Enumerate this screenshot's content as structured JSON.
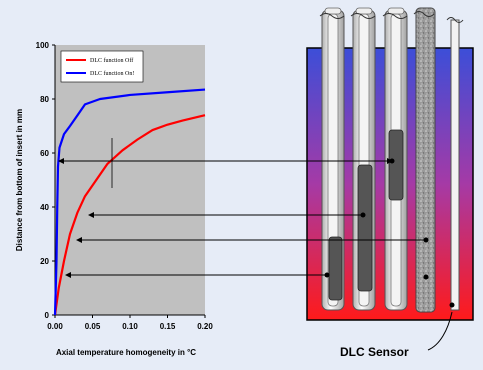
{
  "colors": {
    "background": "#e6ecf7",
    "plot_area": "#c0c0c0",
    "series_off": "#ff0000",
    "series_on": "#0000ff",
    "bath_top": "#3c4ed8",
    "bath_bottom": "#ff1a1a",
    "bath_border": "#000000"
  },
  "chart_data": {
    "type": "line",
    "xlabel": "Axial temperature homogeneity in °C",
    "ylabel": "Distance from bottom of insert in mm",
    "xlim": [
      0,
      0.2
    ],
    "ylim": [
      0,
      100
    ],
    "x_ticks": [
      "0.00",
      "0.05",
      "0.10",
      "0.15",
      "0.20"
    ],
    "y_ticks": [
      "0",
      "20",
      "40",
      "60",
      "80",
      "100"
    ],
    "grid": false,
    "legend_position": "top-left",
    "series": [
      {
        "name": "DLC function Off",
        "color": "#ff0000",
        "points": [
          [
            0.0,
            0
          ],
          [
            0.005,
            10
          ],
          [
            0.012,
            20
          ],
          [
            0.02,
            30
          ],
          [
            0.03,
            38
          ],
          [
            0.04,
            44
          ],
          [
            0.055,
            50
          ],
          [
            0.07,
            56
          ],
          [
            0.09,
            61
          ],
          [
            0.11,
            65
          ],
          [
            0.13,
            68.5
          ],
          [
            0.15,
            70.5
          ],
          [
            0.17,
            72
          ],
          [
            0.2,
            74
          ]
        ]
      },
      {
        "name": "DLC function On!",
        "color": "#0000ff",
        "points": [
          [
            0.0,
            0
          ],
          [
            0.002,
            20
          ],
          [
            0.003,
            40
          ],
          [
            0.004,
            55
          ],
          [
            0.006,
            62
          ],
          [
            0.012,
            67
          ],
          [
            0.02,
            70
          ],
          [
            0.03,
            74
          ],
          [
            0.04,
            78
          ],
          [
            0.06,
            80
          ],
          [
            0.1,
            81.5
          ],
          [
            0.15,
            82.5
          ],
          [
            0.2,
            83.5
          ]
        ]
      }
    ]
  },
  "diagram": {
    "sensor_label": "DLC Sensor"
  }
}
